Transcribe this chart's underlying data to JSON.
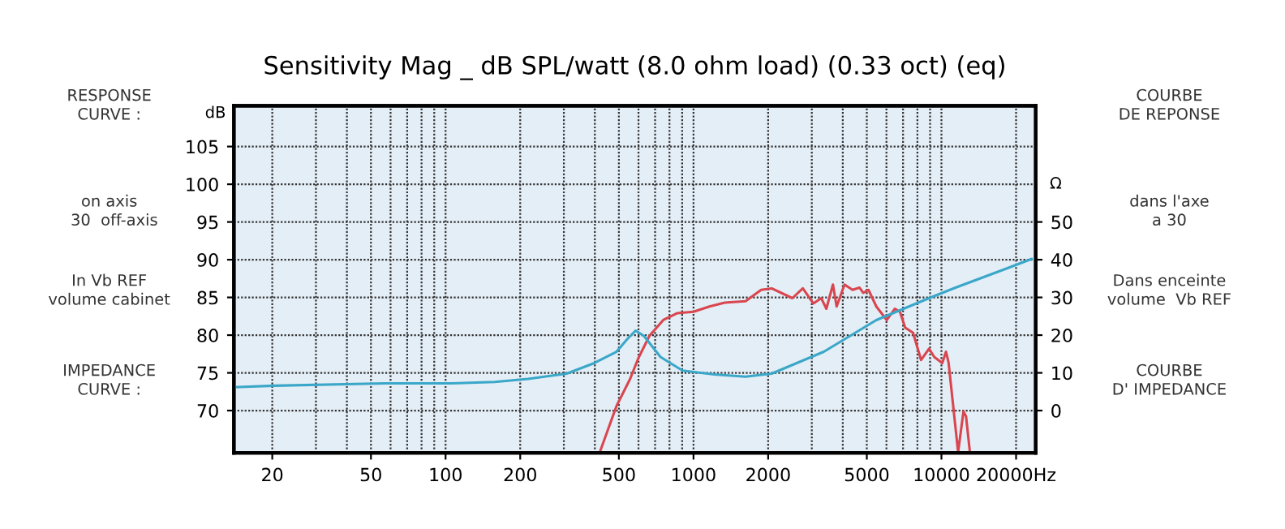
{
  "chart_data": {
    "type": "line",
    "title": "Sensitivity Mag _ dB SPL/watt (8.0 ohm load) (0.33 oct) (eq)",
    "ylabel": "dB",
    "y2label": "Ω",
    "log": "x",
    "grid": true,
    "marker": "none",
    "line_style": "solid",
    "xlim": [
      14,
      24000
    ],
    "xticks": [
      20,
      50,
      100,
      200,
      500,
      1000,
      2000,
      5000,
      10000,
      {
        "value": 20000,
        "label": "20000Hz"
      }
    ],
    "ylim": [
      64.4,
      110.4
    ],
    "yticks": [
      70,
      75,
      80,
      85,
      90,
      95,
      100,
      105
    ],
    "y2lim": [
      -11.2,
      80.8
    ],
    "y2ticks": [
      0,
      10,
      20,
      30,
      40,
      50
    ],
    "series": [
      {
        "color": "#d9464f",
        "x": [
          419,
          489,
          555,
          600,
          664,
          755,
          858,
          1000,
          1160,
          1337,
          1621,
          1875,
          2066,
          2505,
          2760,
          3046,
          3276,
          3434,
          3651,
          3778,
          4066,
          4379,
          4670,
          4834,
          5078,
          5462,
          6019,
          6484,
          6801,
          7139,
          7687,
          8276,
          8910,
          9355,
          10077,
          10435,
          10690,
          11398,
          11675,
          12271,
          12570,
          13025
        ],
        "values": [
          64.5,
          70.6,
          74.2,
          77.0,
          79.9,
          82.0,
          82.9,
          83.1,
          83.8,
          84.3,
          84.5,
          86.0,
          86.2,
          84.9,
          86.2,
          84.2,
          84.9,
          83.5,
          86.7,
          83.8,
          86.7,
          86.0,
          86.3,
          85.6,
          86.0,
          83.8,
          82.0,
          83.5,
          83.1,
          81.0,
          80.3,
          76.7,
          78.2,
          77.1,
          76.3,
          77.8,
          76.3,
          67.7,
          64.5,
          69.9,
          69.2,
          64.5
        ]
      },
      {
        "color": "#3aa7c9",
        "axis": "y2",
        "x": [
          14,
          20.4,
          57,
          106,
          158,
          215,
          308,
          398,
          489,
          541,
          584,
          631,
          736,
          903,
          1213,
          1621,
          2066,
          3354,
          5462,
          8910,
          11398,
          18200,
          23100
        ],
        "values": [
          6.2,
          6.6,
          7.2,
          7.2,
          7.6,
          8.4,
          9.8,
          12.6,
          15.6,
          19.0,
          21.2,
          19.8,
          14.2,
          10.6,
          9.6,
          9.0,
          9.8,
          15.6,
          24.0,
          29.8,
          32.6,
          37.6,
          40.2
        ]
      }
    ],
    "annotations": [
      "RESPONSE\nCURVE :",
      "on axis\n  30  off-axis",
      "In Vb REF\nvolume cabinet",
      "IMPEDANCE\nCURVE :",
      "COURBE\nDE REPONSE",
      "dans l'axe\na 30",
      "Dans enceinte\nvolume  Vb REF",
      "COURBE\nD' IMPEDANCE"
    ]
  }
}
